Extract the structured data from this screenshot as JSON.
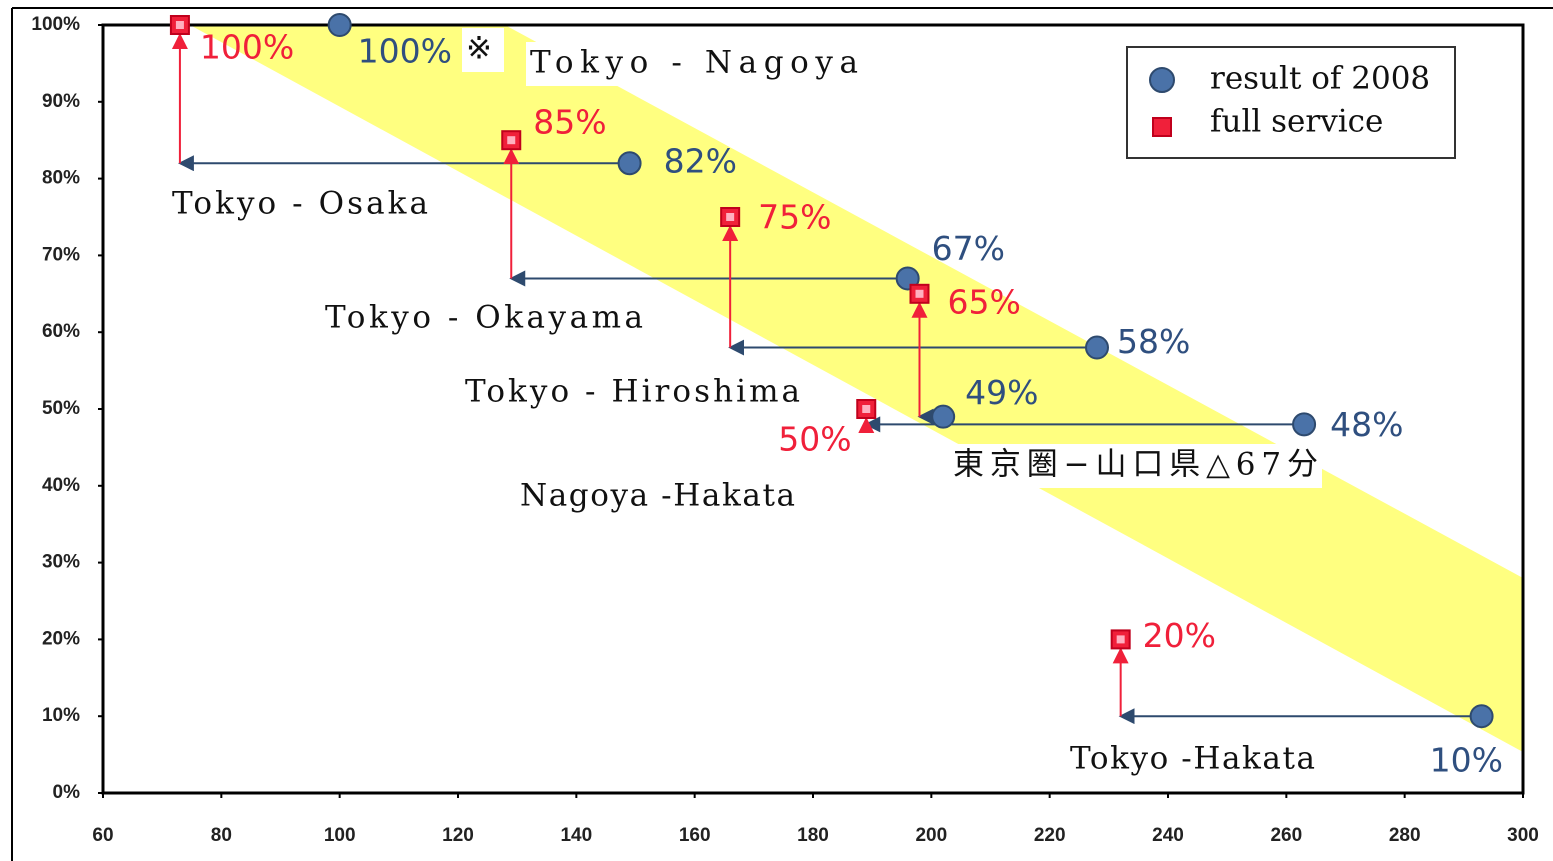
{
  "chart_data": {
    "type": "scatter",
    "xlim": [
      60,
      300
    ],
    "xticks": [
      60,
      80,
      100,
      120,
      140,
      160,
      180,
      200,
      220,
      240,
      260,
      280,
      300
    ],
    "ylim": [
      0,
      100
    ],
    "yticks": [
      {
        "value": 0,
        "label": "0%"
      },
      {
        "value": 10,
        "label": "10%"
      },
      {
        "value": 20,
        "label": "20%"
      },
      {
        "value": 30,
        "label": "30%"
      },
      {
        "value": 40,
        "label": "40%"
      },
      {
        "value": 50,
        "label": "50%"
      },
      {
        "value": 60,
        "label": "60%"
      },
      {
        "value": 70,
        "label": "70%"
      },
      {
        "value": 80,
        "label": "80%"
      },
      {
        "value": 90,
        "label": "90%"
      },
      {
        "value": 100,
        "label": "100%"
      }
    ],
    "legend": "top-right",
    "series": [
      {
        "name": "result of 2008",
        "color": "#4a72a8",
        "marker": "circle",
        "x": [
          100,
          149,
          196,
          228,
          202,
          263,
          293
        ],
        "values": [
          100,
          82,
          67,
          58,
          49,
          48,
          10
        ],
        "value_labels": [
          "100%",
          "82%",
          "67%",
          "58%",
          "49%",
          "48%",
          "10%"
        ]
      },
      {
        "name": "full service",
        "color": "#f0203a",
        "marker": "square",
        "x": [
          73,
          129,
          166,
          198,
          189,
          232
        ],
        "values": [
          100,
          85,
          75,
          65,
          50,
          20
        ],
        "value_labels": [
          "100%",
          "85%",
          "75%",
          "65%",
          "50%",
          "20%"
        ]
      }
    ],
    "annotations": [
      "Tokyo - Nagoya",
      "Tokyo - Osaka",
      "Tokyo - Okayama",
      "Tokyo - Hiroshima",
      "Nagoya -Hakata",
      "東京圏−山口県△67分",
      "Tokyo -Hakata",
      "※"
    ]
  }
}
